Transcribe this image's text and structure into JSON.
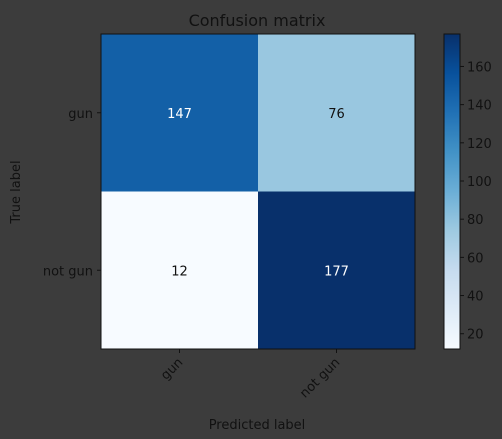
{
  "chart_data": {
    "type": "heatmap",
    "title": "Confusion matrix",
    "xlabel": "Predicted label",
    "ylabel": "True label",
    "x_categories": [
      "gun",
      "not gun"
    ],
    "y_categories": [
      "gun",
      "not gun"
    ],
    "matrix": [
      [
        147,
        76
      ],
      [
        12,
        177
      ]
    ],
    "colormap": "Blues",
    "color_range": [
      12,
      177
    ],
    "colorbar_ticks": [
      20,
      40,
      60,
      80,
      100,
      120,
      140,
      160
    ],
    "grid": false,
    "colors": {
      "background": "#3c3c3c",
      "text": "#111111",
      "cell_text_light_bg": "#111111",
      "cell_text_dark_bg": "#ffffff",
      "axis": "#111111"
    }
  }
}
